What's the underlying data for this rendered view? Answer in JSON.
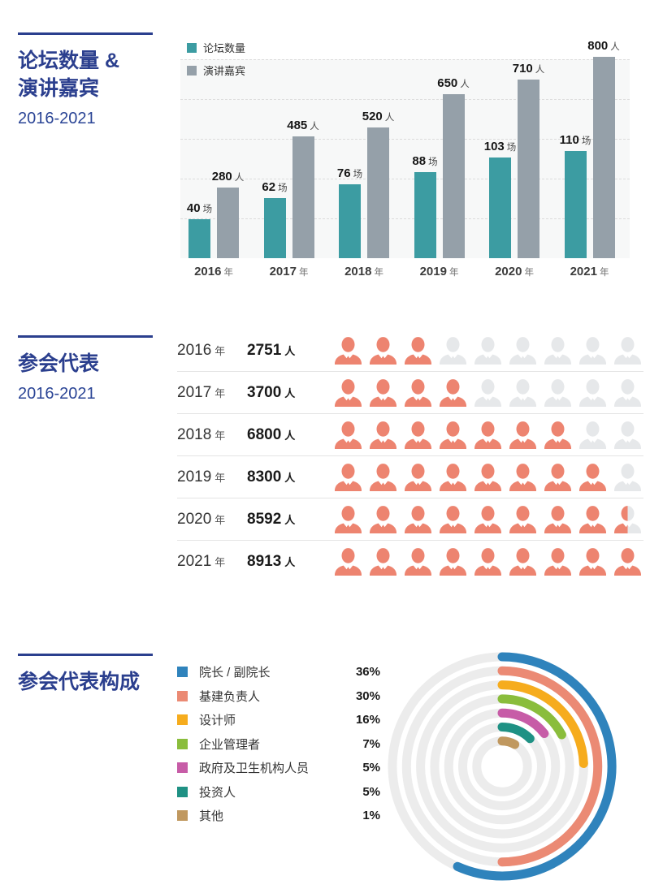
{
  "accent_color": "#2B3F8E",
  "sections": {
    "forums": {
      "title_line1": "论坛数量 &",
      "title_line2": "演讲嘉宾",
      "subtitle": "2016-2021"
    },
    "attendees": {
      "title": "参会代表",
      "subtitle": "2016-2021"
    },
    "composition": {
      "title": "参会代表构成"
    }
  },
  "chart_data": [
    {
      "type": "bar",
      "title": "论坛数量 & 演讲嘉宾 2016-2021",
      "categories": [
        "2016",
        "2017",
        "2018",
        "2019",
        "2020",
        "2021"
      ],
      "category_unit": "年",
      "series": [
        {
          "name": "论坛数量",
          "unit": "场",
          "color": "#3C9CA2",
          "values": [
            40,
            62,
            76,
            88,
            103,
            110
          ]
        },
        {
          "name": "演讲嘉宾",
          "unit": "人",
          "color": "#95A0A9",
          "values": [
            280,
            485,
            520,
            650,
            710,
            800
          ]
        }
      ],
      "legend_position": "top-left",
      "grid": "horizontal-dashed",
      "ylim": [
        0,
        850
      ]
    },
    {
      "type": "pictograph",
      "title": "参会代表 2016-2021",
      "unit": "人",
      "year_unit": "年",
      "icons_per_row": 9,
      "filled_color": "#ED8470",
      "empty_color": "#E6E8EA",
      "rows": [
        {
          "year": "2016",
          "count": "2751",
          "icons_filled": 3
        },
        {
          "year": "2017",
          "count": "3700",
          "icons_filled": 4
        },
        {
          "year": "2018",
          "count": "6800",
          "icons_filled": 7
        },
        {
          "year": "2019",
          "count": "8300",
          "icons_filled": 8
        },
        {
          "year": "2020",
          "count": "8592",
          "icons_filled": 8.5
        },
        {
          "year": "2021",
          "count": "8913",
          "icons_filled": 9
        }
      ]
    },
    {
      "type": "radial-arcs",
      "title": "参会代表构成",
      "unit": "%",
      "track_color": "#ECECEC",
      "legend_position": "left",
      "items": [
        {
          "label": "院长 / 副院长",
          "value": 36,
          "color": "#2F83BC",
          "arc_deg": 204
        },
        {
          "label": "基建负责人",
          "value": 30,
          "color": "#EB8A74",
          "arc_deg": 180
        },
        {
          "label": "设计师",
          "value": 16,
          "color": "#F6AC1D",
          "arc_deg": 88
        },
        {
          "label": "企业管理者",
          "value": 7,
          "color": "#8ABD3C",
          "arc_deg": 62
        },
        {
          "label": "政府及卫生机构人员",
          "value": 5,
          "color": "#C75CA7",
          "arc_deg": 52
        },
        {
          "label": "投资人",
          "value": 5,
          "color": "#1F9184",
          "arc_deg": 45
        },
        {
          "label": "其他",
          "value": 1,
          "color": "#C0985F",
          "arc_deg": 30
        }
      ]
    }
  ]
}
